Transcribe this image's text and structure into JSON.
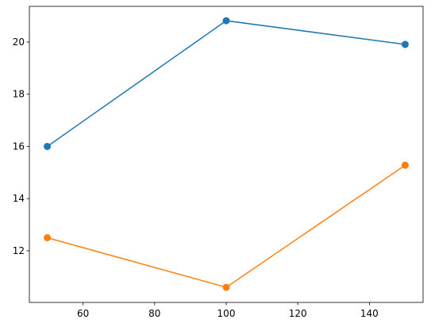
{
  "chart_data": {
    "type": "line",
    "x": [
      50,
      100,
      150
    ],
    "series": [
      {
        "color": "#1f77b4",
        "values": [
          16.0,
          20.82,
          19.91
        ]
      },
      {
        "color": "#ff7f0e",
        "values": [
          12.5,
          10.6,
          15.28
        ]
      }
    ],
    "xlim": [
      45,
      155
    ],
    "xticks": [
      60,
      80,
      100,
      120,
      140
    ],
    "ylim": [
      10.02,
      21.37
    ],
    "yticks": [
      12,
      14,
      16,
      18,
      20
    ],
    "grid": false
  }
}
